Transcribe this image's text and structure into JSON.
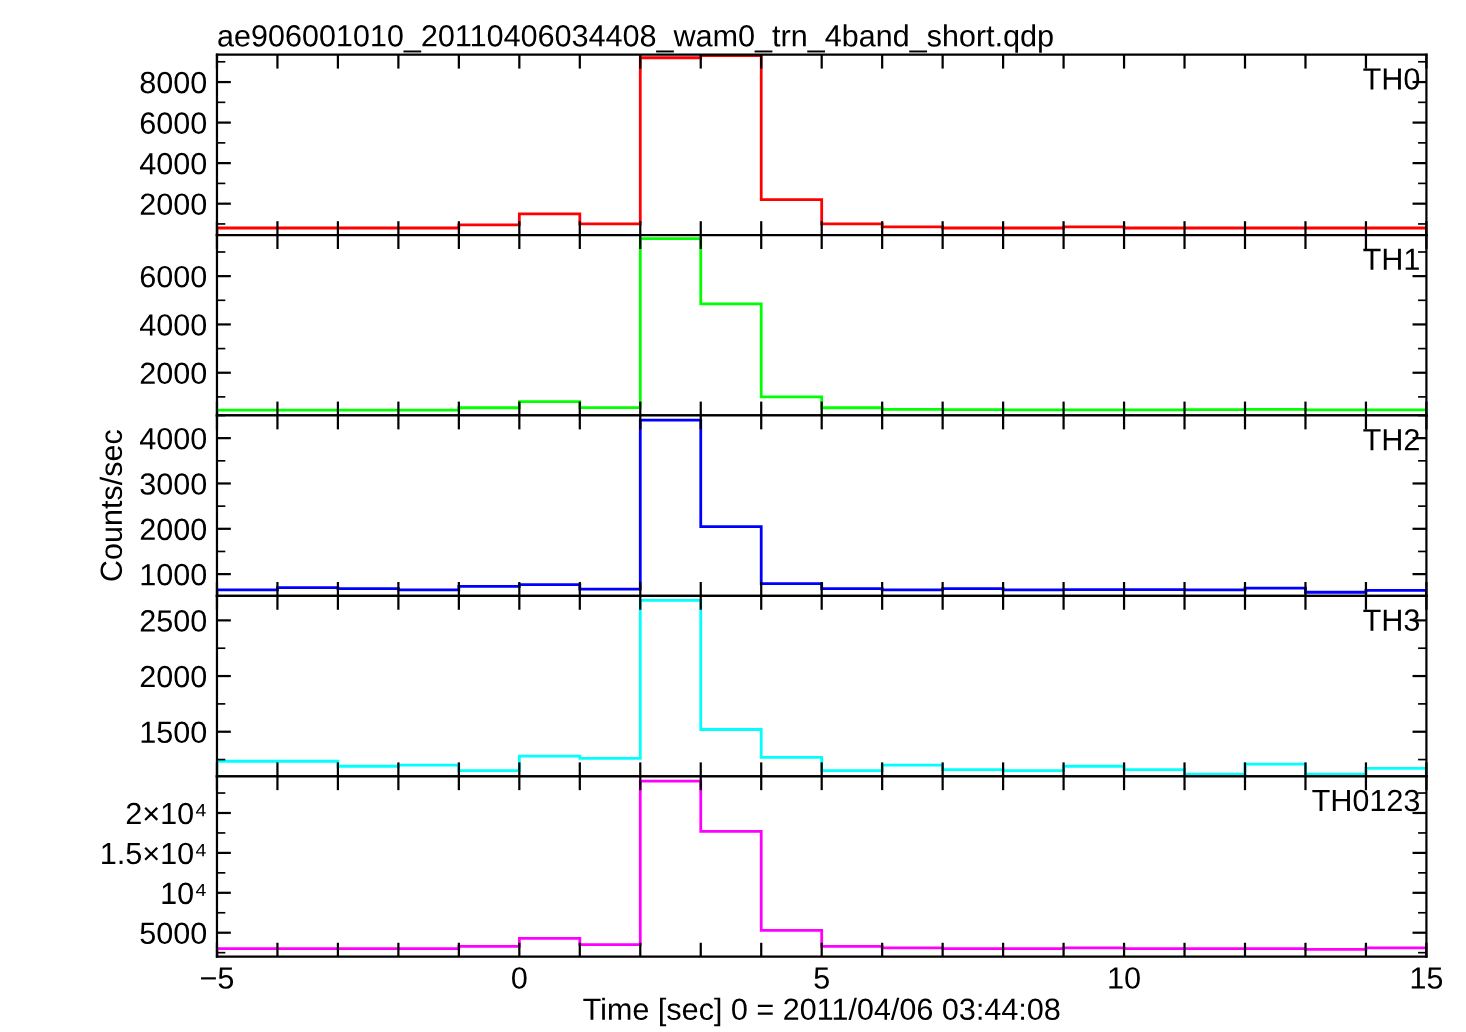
{
  "chart_data": [
    {
      "type": "histogram",
      "title": "ae906001010_20110406034408_wam0_trn_4band_short.qdp",
      "bins": [
        -5,
        -4,
        -3,
        -2,
        -1,
        0,
        1,
        2,
        3,
        4,
        5,
        6,
        7,
        8,
        9,
        10,
        11,
        12,
        13,
        14,
        15
      ],
      "series": [
        {
          "name": "TH0",
          "color": "#ff0000",
          "values": [
            800,
            800,
            800,
            800,
            950,
            1500,
            1000,
            9200,
            9300,
            2200,
            1000,
            850,
            800,
            800,
            850,
            800,
            800,
            800,
            800,
            800
          ]
        }
      ],
      "xlim": [
        -5,
        15
      ],
      "xticks": [
        {
          "value": -5,
          "label": null
        },
        {
          "value": -4,
          "label": null
        },
        {
          "value": -3,
          "label": null
        },
        {
          "value": -2,
          "label": null
        },
        {
          "value": -1,
          "label": null
        },
        {
          "value": 0,
          "label": null
        },
        {
          "value": 1,
          "label": null
        },
        {
          "value": 2,
          "label": null
        },
        {
          "value": 3,
          "label": null
        },
        {
          "value": 4,
          "label": null
        },
        {
          "value": 5,
          "label": null
        },
        {
          "value": 6,
          "label": null
        },
        {
          "value": 7,
          "label": null
        },
        {
          "value": 8,
          "label": null
        },
        {
          "value": 9,
          "label": null
        },
        {
          "value": 10,
          "label": null
        },
        {
          "value": 11,
          "label": null
        },
        {
          "value": 12,
          "label": null
        },
        {
          "value": 13,
          "label": null
        },
        {
          "value": 14,
          "label": null
        },
        {
          "value": 15,
          "label": null
        }
      ],
      "ylim": [
        450,
        9350
      ],
      "yticks": [
        2000,
        4000,
        6000,
        8000
      ],
      "tick_labels": "y"
    },
    {
      "type": "histogram",
      "bins": [
        -5,
        -4,
        -3,
        -2,
        -1,
        0,
        1,
        2,
        3,
        4,
        5,
        6,
        7,
        8,
        9,
        10,
        11,
        12,
        13,
        14,
        15
      ],
      "series": [
        {
          "name": "TH1",
          "color": "#00ff00",
          "values": [
            450,
            450,
            450,
            450,
            550,
            800,
            560,
            7550,
            4850,
            1000,
            550,
            480,
            470,
            460,
            460,
            460,
            470,
            480,
            460,
            460
          ]
        }
      ],
      "xlim": [
        -5,
        15
      ],
      "xticks": [
        {
          "value": -5,
          "label": null
        },
        {
          "value": -4,
          "label": null
        },
        {
          "value": -3,
          "label": null
        },
        {
          "value": -2,
          "label": null
        },
        {
          "value": -1,
          "label": null
        },
        {
          "value": 0,
          "label": null
        },
        {
          "value": 1,
          "label": null
        },
        {
          "value": 2,
          "label": null
        },
        {
          "value": 3,
          "label": null
        },
        {
          "value": 4,
          "label": null
        },
        {
          "value": 5,
          "label": null
        },
        {
          "value": 6,
          "label": null
        },
        {
          "value": 7,
          "label": null
        },
        {
          "value": 8,
          "label": null
        },
        {
          "value": 9,
          "label": null
        },
        {
          "value": 10,
          "label": null
        },
        {
          "value": 11,
          "label": null
        },
        {
          "value": 12,
          "label": null
        },
        {
          "value": 13,
          "label": null
        },
        {
          "value": 14,
          "label": null
        },
        {
          "value": 15,
          "label": null
        }
      ],
      "ylim": [
        230,
        7700
      ],
      "yticks": [
        2000,
        4000,
        6000
      ],
      "tick_labels": "y"
    },
    {
      "type": "histogram",
      "ylabel": "Counts/sec",
      "bins": [
        -5,
        -4,
        -3,
        -2,
        -1,
        0,
        1,
        2,
        3,
        4,
        5,
        6,
        7,
        8,
        9,
        10,
        11,
        12,
        13,
        14,
        15
      ],
      "series": [
        {
          "name": "TH2",
          "color": "#0000ff",
          "values": [
            650,
            700,
            680,
            650,
            730,
            770,
            670,
            4400,
            2050,
            790,
            680,
            650,
            680,
            650,
            660,
            660,
            650,
            690,
            600,
            640
          ]
        }
      ],
      "xlim": [
        -5,
        15
      ],
      "xticks": [
        {
          "value": -5,
          "label": null
        },
        {
          "value": -4,
          "label": null
        },
        {
          "value": -3,
          "label": null
        },
        {
          "value": -2,
          "label": null
        },
        {
          "value": -1,
          "label": null
        },
        {
          "value": 0,
          "label": null
        },
        {
          "value": 1,
          "label": null
        },
        {
          "value": 2,
          "label": null
        },
        {
          "value": 3,
          "label": null
        },
        {
          "value": 4,
          "label": null
        },
        {
          "value": 5,
          "label": null
        },
        {
          "value": 6,
          "label": null
        },
        {
          "value": 7,
          "label": null
        },
        {
          "value": 8,
          "label": null
        },
        {
          "value": 9,
          "label": null
        },
        {
          "value": 10,
          "label": null
        },
        {
          "value": 11,
          "label": null
        },
        {
          "value": 12,
          "label": null
        },
        {
          "value": 13,
          "label": null
        },
        {
          "value": 14,
          "label": null
        },
        {
          "value": 15,
          "label": null
        }
      ],
      "ylim": [
        520,
        4500
      ],
      "yticks": [
        1000,
        2000,
        3000,
        4000
      ],
      "tick_labels": "y"
    },
    {
      "type": "histogram",
      "bins": [
        -5,
        -4,
        -3,
        -2,
        -1,
        0,
        1,
        2,
        3,
        4,
        5,
        6,
        7,
        8,
        9,
        10,
        11,
        12,
        13,
        14,
        15
      ],
      "series": [
        {
          "name": "TH3",
          "color": "#00ffff",
          "values": [
            1235,
            1235,
            1190,
            1200,
            1150,
            1280,
            1260,
            2680,
            1520,
            1270,
            1150,
            1200,
            1160,
            1150,
            1190,
            1160,
            1120,
            1210,
            1120,
            1170
          ]
        }
      ],
      "xlim": [
        -5,
        15
      ],
      "xticks": [
        {
          "value": -5,
          "label": null
        },
        {
          "value": -4,
          "label": null
        },
        {
          "value": -3,
          "label": null
        },
        {
          "value": -2,
          "label": null
        },
        {
          "value": -1,
          "label": null
        },
        {
          "value": 0,
          "label": null
        },
        {
          "value": 1,
          "label": null
        },
        {
          "value": 2,
          "label": null
        },
        {
          "value": 3,
          "label": null
        },
        {
          "value": 4,
          "label": null
        },
        {
          "value": 5,
          "label": null
        },
        {
          "value": 6,
          "label": null
        },
        {
          "value": 7,
          "label": null
        },
        {
          "value": 8,
          "label": null
        },
        {
          "value": 9,
          "label": null
        },
        {
          "value": 10,
          "label": null
        },
        {
          "value": 11,
          "label": null
        },
        {
          "value": 12,
          "label": null
        },
        {
          "value": 13,
          "label": null
        },
        {
          "value": 14,
          "label": null
        },
        {
          "value": 15,
          "label": null
        }
      ],
      "ylim": [
        1100,
        2720
      ],
      "yticks": [
        1500,
        2000,
        2500
      ],
      "tick_labels": "y"
    },
    {
      "type": "histogram",
      "xlabel": "Time [sec] 0 = 2011/04/06 03:44:08",
      "bins": [
        -5,
        -4,
        -3,
        -2,
        -1,
        0,
        1,
        2,
        3,
        4,
        5,
        6,
        7,
        8,
        9,
        10,
        11,
        12,
        13,
        14,
        15
      ],
      "series": [
        {
          "name": "TH0123",
          "color": "#ff00ff",
          "values": [
            3000,
            3000,
            3000,
            3000,
            3300,
            4300,
            3500,
            24000,
            17700,
            5300,
            3300,
            3100,
            3000,
            3000,
            3100,
            3000,
            3000,
            3000,
            2900,
            3100
          ]
        }
      ],
      "xlim": [
        -5,
        15
      ],
      "xticks": [
        -5,
        {
          "value": -4,
          "label": null
        },
        {
          "value": -3,
          "label": null
        },
        {
          "value": -2,
          "label": null
        },
        {
          "value": -1,
          "label": null
        },
        0,
        {
          "value": 1,
          "label": null
        },
        {
          "value": 2,
          "label": null
        },
        {
          "value": 3,
          "label": null
        },
        {
          "value": 4,
          "label": null
        },
        5,
        {
          "value": 6,
          "label": null
        },
        {
          "value": 7,
          "label": null
        },
        {
          "value": 8,
          "label": null
        },
        {
          "value": 9,
          "label": null
        },
        10,
        {
          "value": 11,
          "label": null
        },
        {
          "value": 12,
          "label": null
        },
        {
          "value": 13,
          "label": null
        },
        {
          "value": 14,
          "label": null
        },
        15
      ],
      "ylim": [
        2000,
        24600
      ],
      "yticks": [
        5000,
        {
          "value": 10000,
          "label": "10⁴"
        },
        {
          "value": 15000,
          "label": "1.5×10⁴"
        },
        {
          "value": 20000,
          "label": "2×10⁴"
        }
      ]
    }
  ]
}
